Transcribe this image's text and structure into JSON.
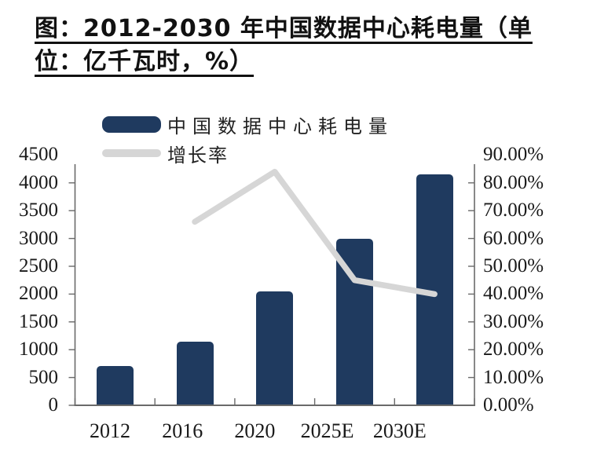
{
  "title": {
    "line1": "图：2012-2030 年中国数据中心耗电量（单",
    "line2": "位：亿千瓦时，%）"
  },
  "legend": {
    "items": [
      {
        "label": "中国数据中心耗电量",
        "swatch": "bar-swatch",
        "color": "#1F3A5F"
      },
      {
        "label": "增长率",
        "swatch": "line-swatch",
        "color": "#D6D6D6"
      }
    ]
  },
  "colors": {
    "bar": "#1F3A5F",
    "line": "#D6D6D6",
    "axis": "#6a6a6a",
    "text": "#1a1a1a"
  },
  "chart_data": {
    "type": "bar",
    "title": "2012-2030 年中国数据中心耗电量",
    "unit_note": "亿千瓦时，%",
    "categories": [
      "2012",
      "2016",
      "2020",
      "2025E",
      "2030E"
    ],
    "series": [
      {
        "name": "中国数据中心耗电量",
        "type": "bar",
        "axis": "left",
        "values": [
          700,
          1150,
          2050,
          3000,
          4150
        ]
      },
      {
        "name": "增长率",
        "type": "line",
        "axis": "right",
        "values": [
          null,
          66,
          84,
          45,
          40
        ],
        "unit": "%"
      }
    ],
    "left_axis": {
      "min": 0,
      "max": 4500,
      "step": 500,
      "tick_labels": [
        "0",
        "500",
        "1000",
        "1500",
        "2000",
        "2500",
        "3000",
        "3500",
        "4000",
        "4500"
      ]
    },
    "right_axis": {
      "min": 0,
      "max": 90,
      "step": 10,
      "tick_labels": [
        "0.00%",
        "10.00%",
        "20.00%",
        "30.00%",
        "40.00%",
        "50.00%",
        "60.00%",
        "70.00%",
        "80.00%",
        "90.00%"
      ]
    },
    "legend_position": "top-left",
    "grid": false
  }
}
